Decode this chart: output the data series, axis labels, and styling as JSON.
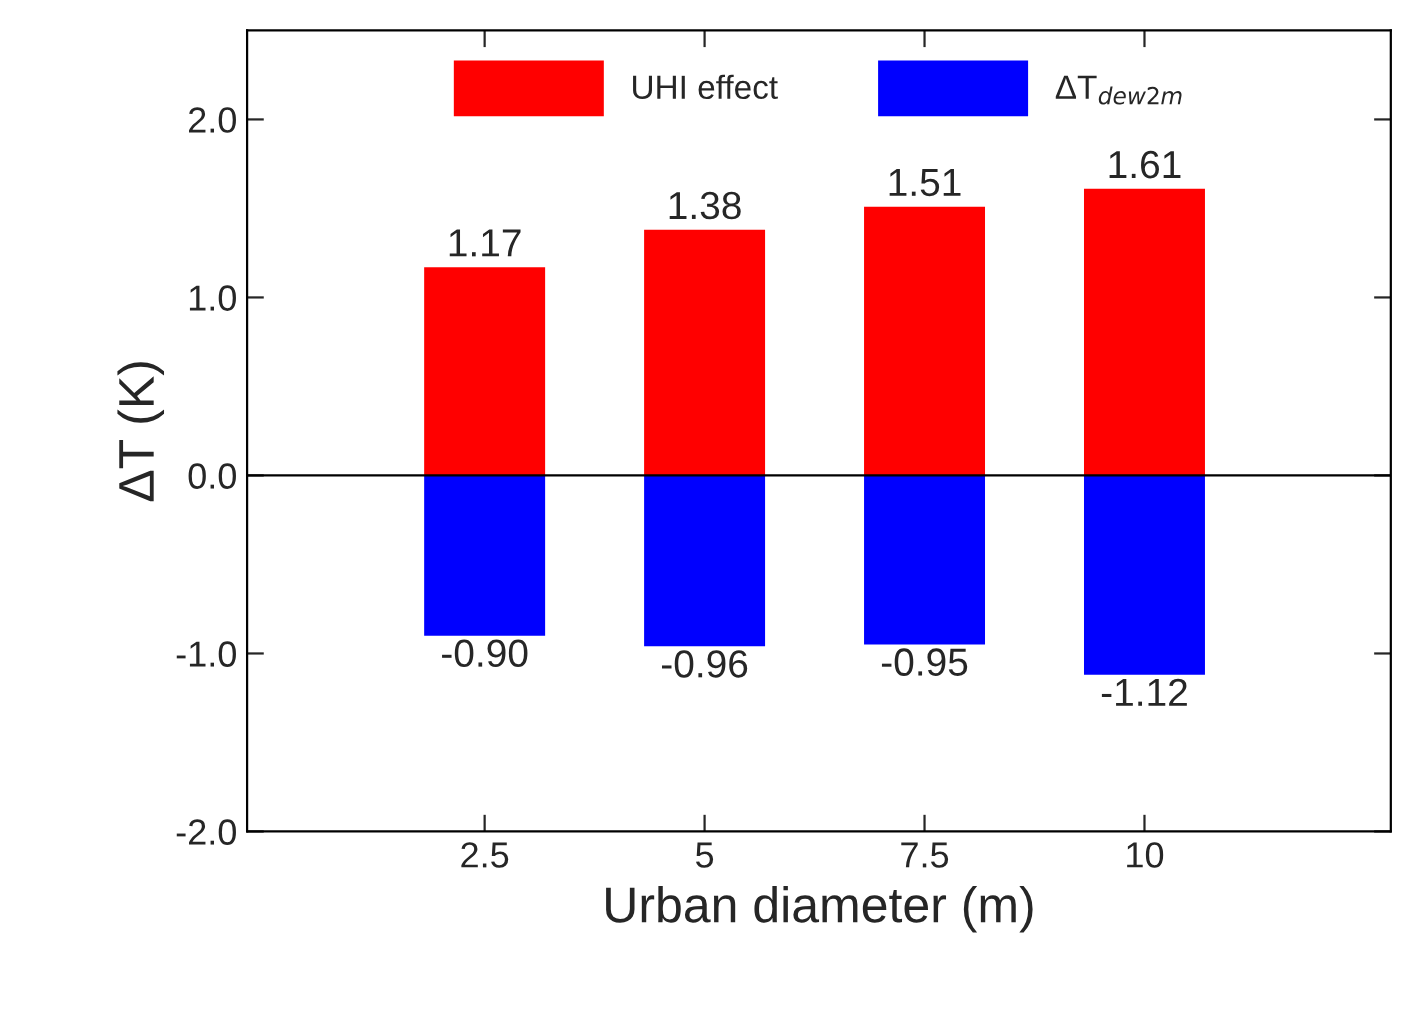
{
  "chart_data": {
    "type": "bar",
    "xlabel": "Urban diameter (m)",
    "ylabel": "ΔT (K)",
    "categories": [
      "2.5",
      "5",
      "7.5",
      "10"
    ],
    "series": [
      {
        "name": "UHI effect",
        "color": "#ff0000",
        "values": [
          1.17,
          1.38,
          1.51,
          1.61
        ],
        "value_labels": [
          "1.17",
          "1.38",
          "1.51",
          "1.61"
        ]
      },
      {
        "name": "ΔT$_{dew2m}$",
        "color": "#0000ff",
        "values": [
          -0.9,
          -0.96,
          -0.95,
          -1.12
        ],
        "value_labels": [
          "-0.90",
          "-0.96",
          "-0.95",
          "-1.12"
        ]
      }
    ],
    "ylim": [
      -2.0,
      2.5
    ],
    "yticks": [
      {
        "value": -2,
        "label": "-2.0"
      },
      {
        "value": -1,
        "label": "-1.0"
      },
      {
        "value": 0,
        "label": "0.0"
      },
      {
        "value": 1,
        "label": "1.0"
      },
      {
        "value": 2,
        "label": "2.0"
      }
    ],
    "ref_lines": [
      {
        "axis": "y",
        "value": 0,
        "color": "#000000"
      }
    ],
    "legend": "top",
    "grid": false,
    "stacked": true
  }
}
